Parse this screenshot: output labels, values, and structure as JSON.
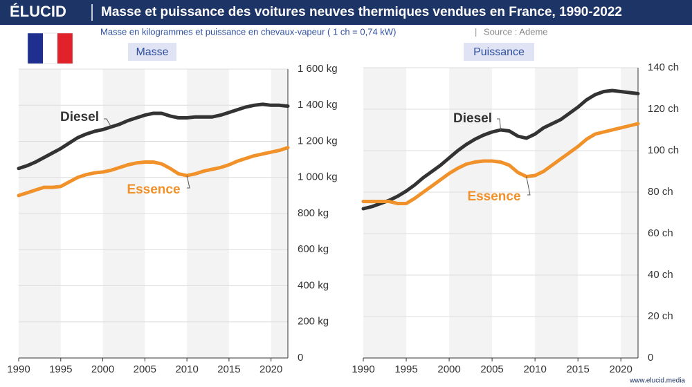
{
  "header": {
    "brand": "ÉLUCID",
    "title": "Masse et puissance des voitures neuves thermiques vendues en France, 1990-2022",
    "subtitle": "Masse en kilogrammes et puissance en chevaux-vapeur ( 1 ch = 0,74 kW)",
    "source": "Source : Ademe"
  },
  "footer": "www.elucid.media",
  "chart_data": [
    {
      "type": "line",
      "title": "Masse",
      "x": [
        1990,
        1991,
        1992,
        1993,
        1994,
        1995,
        1996,
        1997,
        1998,
        1999,
        2000,
        2001,
        2002,
        2003,
        2004,
        2005,
        2006,
        2007,
        2008,
        2009,
        2010,
        2011,
        2012,
        2013,
        2014,
        2015,
        2016,
        2017,
        2018,
        2019,
        2020,
        2021,
        2022
      ],
      "series": [
        {
          "name": "Diesel",
          "color": "#333333",
          "values": [
            1050,
            1065,
            1085,
            1110,
            1135,
            1160,
            1190,
            1220,
            1240,
            1255,
            1265,
            1280,
            1295,
            1315,
            1330,
            1345,
            1355,
            1355,
            1340,
            1330,
            1330,
            1335,
            1335,
            1335,
            1345,
            1360,
            1375,
            1390,
            1400,
            1405,
            1400,
            1400,
            1395
          ]
        },
        {
          "name": "Essence",
          "color": "#f0912a",
          "values": [
            900,
            915,
            930,
            945,
            945,
            950,
            975,
            1000,
            1015,
            1025,
            1030,
            1040,
            1055,
            1070,
            1080,
            1085,
            1085,
            1075,
            1050,
            1020,
            1010,
            1020,
            1035,
            1045,
            1055,
            1070,
            1090,
            1105,
            1120,
            1130,
            1140,
            1150,
            1165
          ]
        }
      ],
      "xlim": [
        1990,
        2022
      ],
      "xticks": [
        1990,
        1995,
        2000,
        2005,
        2010,
        2015,
        2020
      ],
      "ylim": [
        0,
        1600
      ],
      "yticks": [
        0,
        {
          "value": 200,
          "label": "200 kg"
        },
        {
          "value": 400,
          "label": "400 kg"
        },
        {
          "value": 600,
          "label": "600 kg"
        },
        {
          "value": 800,
          "label": "800 kg"
        },
        {
          "value": 1000,
          "label": "1 000 kg"
        },
        {
          "value": 1200,
          "label": "1 200 kg"
        },
        {
          "value": 1400,
          "label": "1 400 kg"
        },
        {
          "value": 1600,
          "label": "1 600 kg"
        }
      ],
      "grid": true
    },
    {
      "type": "line",
      "title": "Puissance",
      "x": [
        1990,
        1991,
        1992,
        1993,
        1994,
        1995,
        1996,
        1997,
        1998,
        1999,
        2000,
        2001,
        2002,
        2003,
        2004,
        2005,
        2006,
        2007,
        2008,
        2009,
        2010,
        2011,
        2012,
        2013,
        2014,
        2015,
        2016,
        2017,
        2018,
        2019,
        2020,
        2021,
        2022
      ],
      "series": [
        {
          "name": "Diesel",
          "color": "#333333",
          "values": [
            72,
            73,
            74.5,
            76,
            78,
            80.5,
            83.5,
            87,
            90,
            93,
            96.5,
            100,
            103,
            105.5,
            107.5,
            109,
            110,
            109.5,
            107,
            106,
            108,
            111,
            113,
            115,
            118,
            121,
            124.5,
            127,
            128.5,
            129,
            128.5,
            128,
            127.5
          ]
        },
        {
          "name": "Essence",
          "color": "#f0912a",
          "values": [
            75.5,
            75.5,
            75.5,
            75.5,
            74.5,
            74.5,
            77,
            80,
            83,
            86,
            89,
            91.5,
            93.5,
            94.5,
            95,
            95,
            94.5,
            93,
            89.5,
            87.5,
            88,
            90,
            93,
            96,
            99,
            102,
            105.5,
            108,
            109,
            110,
            111,
            112,
            113
          ]
        }
      ],
      "xlim": [
        1990,
        2022
      ],
      "xticks": [
        1990,
        1995,
        2000,
        2005,
        2010,
        2015,
        2020
      ],
      "ylim": [
        0,
        140
      ],
      "yticks": [
        0,
        {
          "value": 20,
          "label": "20 ch"
        },
        {
          "value": 40,
          "label": "40 ch"
        },
        {
          "value": 60,
          "label": "60 ch"
        },
        {
          "value": 80,
          "label": "80 ch"
        },
        {
          "value": 100,
          "label": "100 ch"
        },
        {
          "value": 120,
          "label": "120 ch"
        },
        {
          "value": 140,
          "label": "140 ch"
        }
      ],
      "grid": true
    }
  ]
}
